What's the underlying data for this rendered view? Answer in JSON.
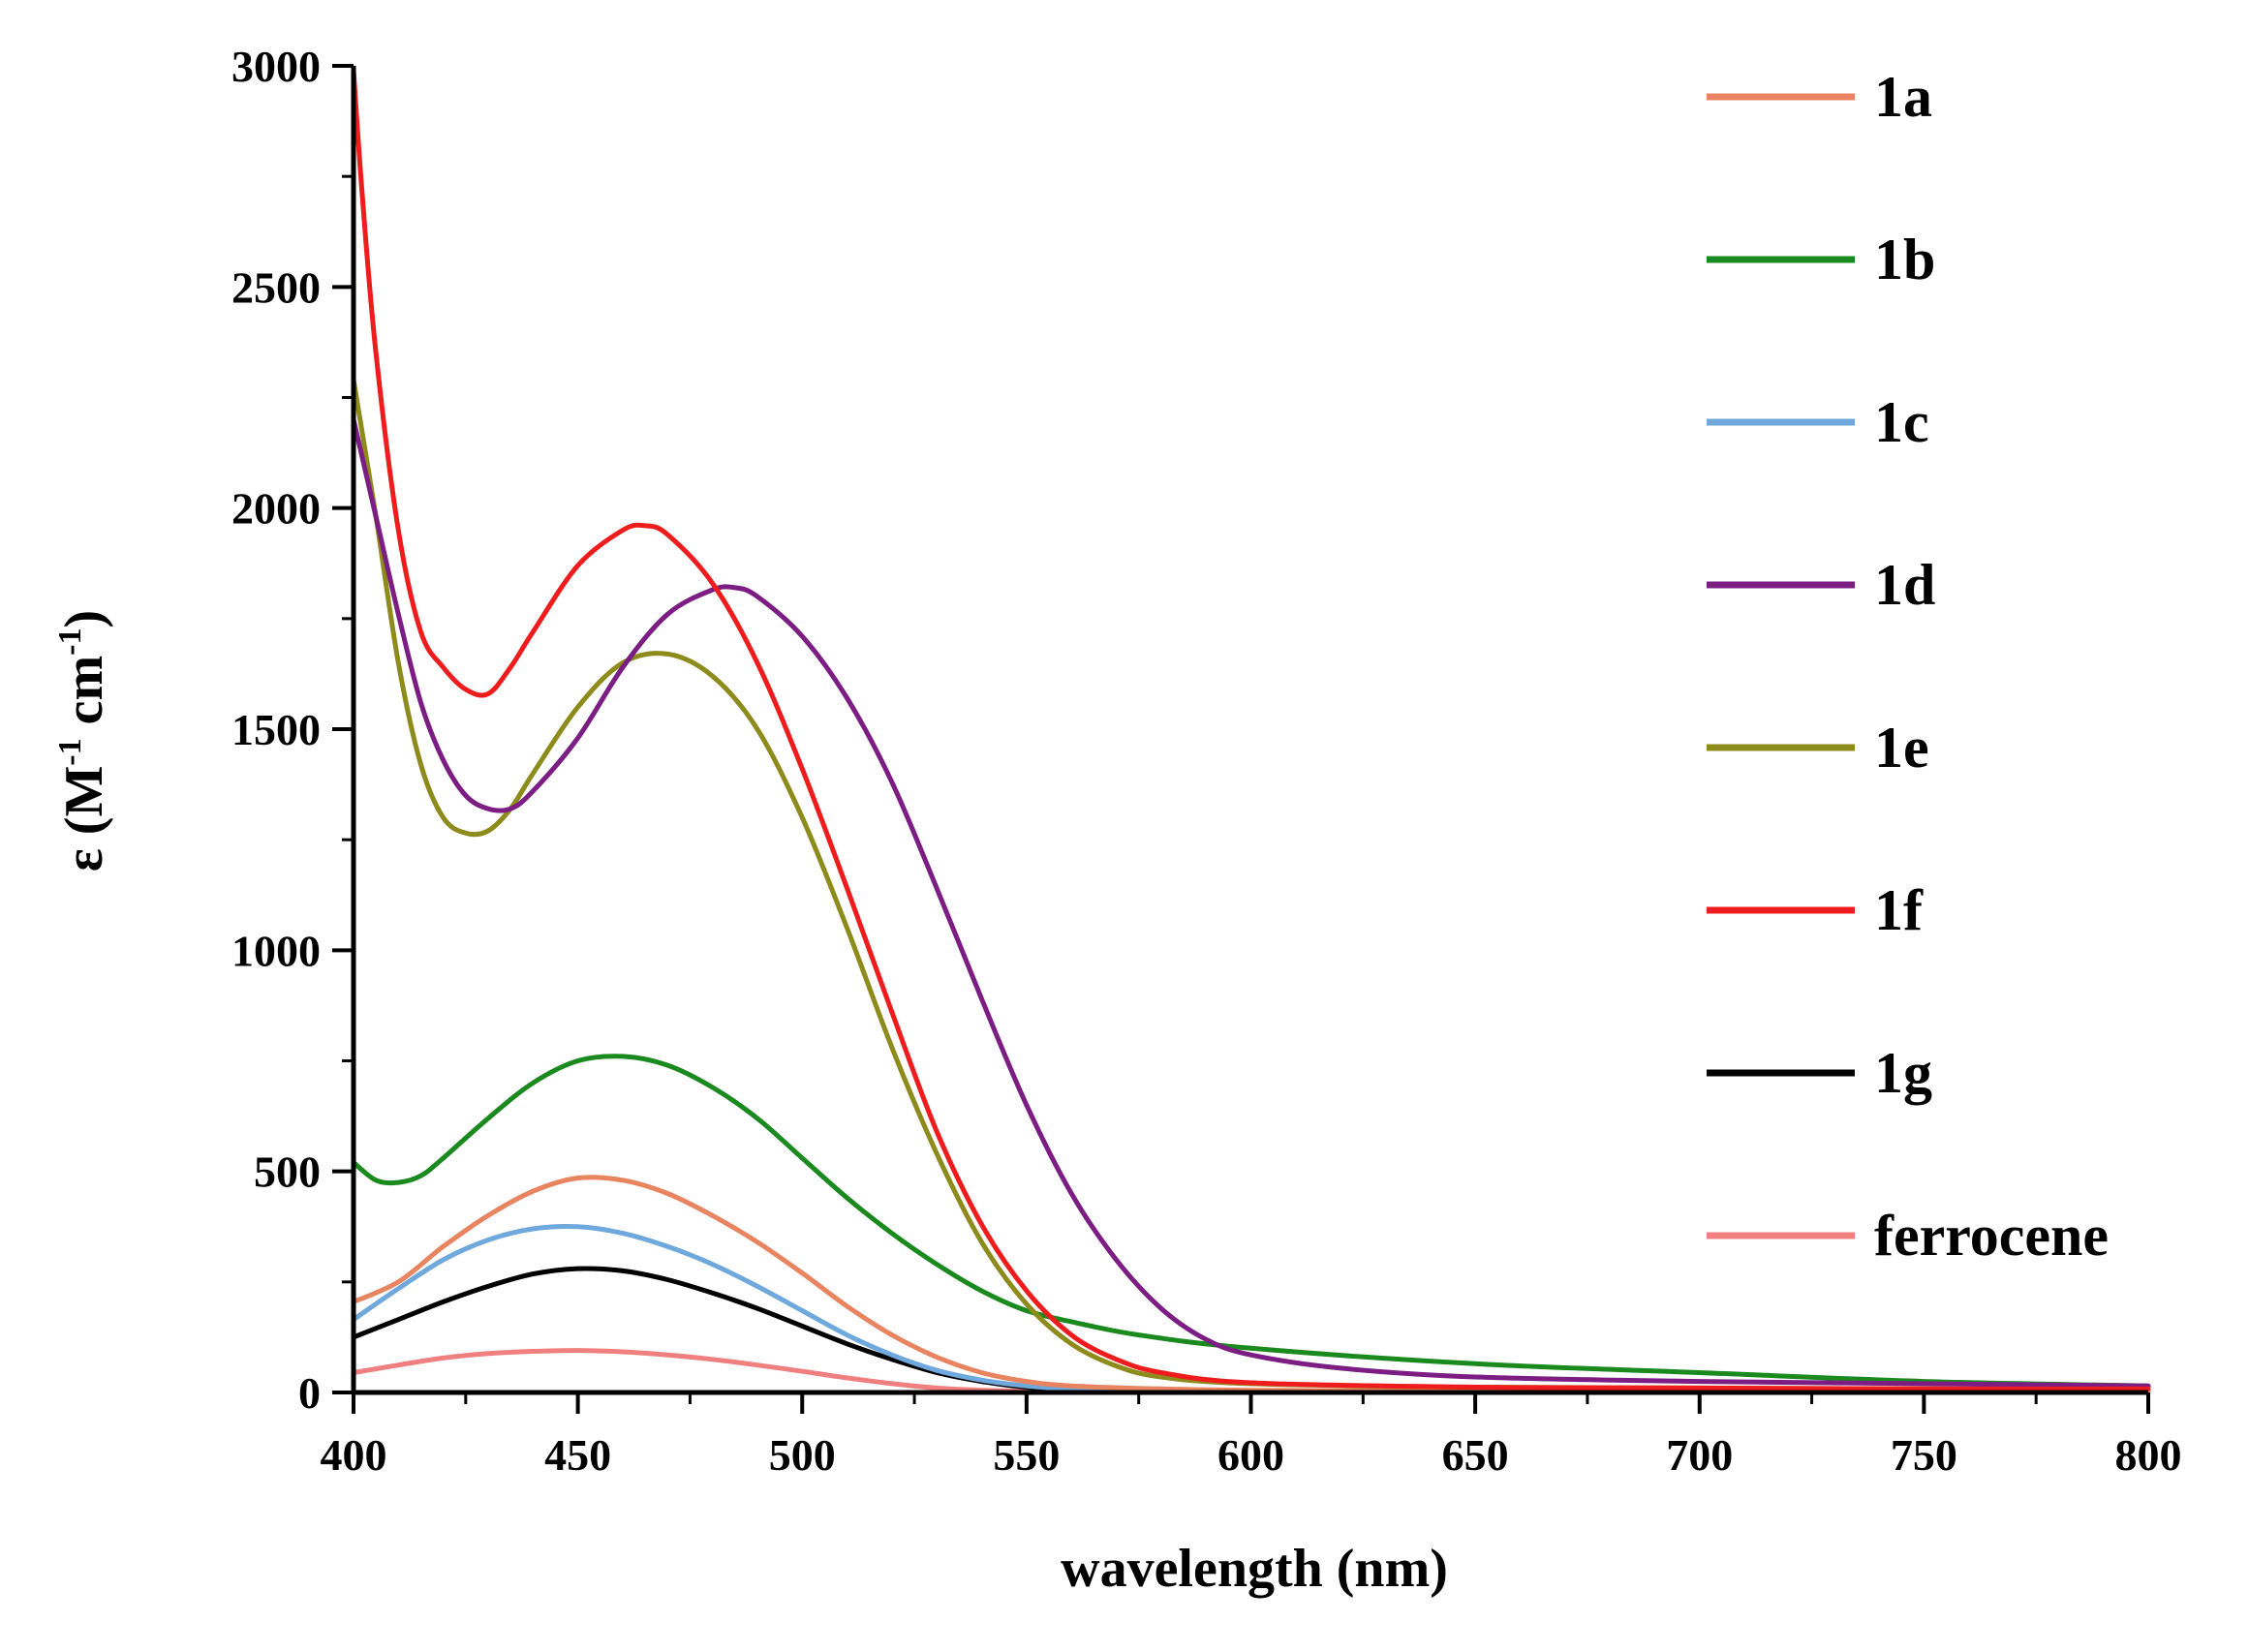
{
  "chart_data": {
    "type": "line",
    "title": "",
    "xlabel": "wavelength (nm)",
    "ylabel": "ε (M",
    "ylabel_sup1": "-1",
    "ylabel_mid": " cm",
    "ylabel_sup2": "-1",
    "ylabel_end": ")",
    "xlim": [
      400,
      800
    ],
    "ylim": [
      0,
      3000
    ],
    "xticks": [
      400,
      450,
      500,
      550,
      600,
      650,
      700,
      750,
      800
    ],
    "yticks": [
      0,
      500,
      1000,
      1500,
      2000,
      2500,
      3000
    ],
    "grid": false,
    "legend_position": "right",
    "series": [
      {
        "name": "1a",
        "color": "#e8845f",
        "x": [
          400,
          410,
          420,
          430,
          440,
          450,
          460,
          470,
          480,
          490,
          500,
          510,
          520,
          530,
          540,
          550,
          560,
          580,
          600,
          650,
          700,
          750,
          800
        ],
        "y": [
          205,
          250,
          330,
          400,
          455,
          485,
          480,
          450,
          400,
          340,
          270,
          195,
          130,
          80,
          45,
          25,
          15,
          8,
          5,
          3,
          2,
          2,
          2
        ]
      },
      {
        "name": "1b",
        "color": "#1a8a1e",
        "x": [
          400,
          405,
          410,
          415,
          420,
          430,
          440,
          450,
          460,
          470,
          480,
          490,
          500,
          510,
          520,
          530,
          540,
          550,
          560,
          575,
          600,
          650,
          700,
          750,
          800
        ],
        "y": [
          520,
          480,
          475,
          490,
          530,
          620,
          700,
          750,
          760,
          740,
          690,
          620,
          530,
          440,
          360,
          290,
          230,
          185,
          160,
          130,
          100,
          65,
          45,
          25,
          15
        ]
      },
      {
        "name": "1c",
        "color": "#6fa8dc",
        "x": [
          400,
          410,
          420,
          430,
          440,
          450,
          460,
          470,
          480,
          490,
          500,
          510,
          520,
          530,
          540,
          550,
          560,
          580,
          600,
          650,
          700,
          750,
          800
        ],
        "y": [
          165,
          235,
          300,
          345,
          370,
          375,
          360,
          330,
          290,
          240,
          185,
          130,
          85,
          50,
          28,
          15,
          8,
          4,
          3,
          2,
          2,
          2,
          2
        ]
      },
      {
        "name": "1d",
        "color": "#7b1d83",
        "x": [
          400,
          405,
          410,
          415,
          420,
          425,
          430,
          435,
          440,
          450,
          460,
          470,
          480,
          485,
          490,
          500,
          510,
          520,
          530,
          540,
          550,
          560,
          570,
          580,
          590,
          600,
          620,
          650,
          700,
          750,
          800
        ],
        "y": [
          2200,
          1980,
          1760,
          1560,
          1430,
          1350,
          1320,
          1320,
          1360,
          1480,
          1640,
          1760,
          1815,
          1820,
          1800,
          1710,
          1570,
          1380,
          1140,
          890,
          650,
          450,
          300,
          190,
          120,
          85,
          55,
          35,
          25,
          20,
          15
        ]
      },
      {
        "name": "1e",
        "color": "#8d8b1c",
        "x": [
          400,
          405,
          410,
          415,
          420,
          425,
          430,
          435,
          440,
          450,
          460,
          470,
          480,
          490,
          500,
          510,
          520,
          530,
          540,
          550,
          560,
          570,
          580,
          600,
          650,
          700,
          750,
          800
        ],
        "y": [
          2290,
          1980,
          1650,
          1420,
          1300,
          1265,
          1270,
          1320,
          1400,
          1550,
          1650,
          1670,
          1620,
          1500,
          1300,
          1050,
          780,
          540,
          340,
          200,
          110,
          60,
          35,
          20,
          12,
          10,
          8,
          8
        ]
      },
      {
        "name": "1f",
        "color": "#ee1c1c",
        "x": [
          400,
          402,
          405,
          410,
          415,
          420,
          425,
          430,
          435,
          440,
          450,
          460,
          465,
          470,
          480,
          490,
          500,
          510,
          520,
          530,
          540,
          550,
          560,
          570,
          580,
          600,
          650,
          700,
          750,
          800
        ],
        "y": [
          2990,
          2700,
          2350,
          1950,
          1720,
          1640,
          1590,
          1580,
          1640,
          1720,
          1870,
          1950,
          1960,
          1940,
          1830,
          1650,
          1410,
          1140,
          860,
          590,
          380,
          230,
          130,
          75,
          45,
          22,
          12,
          10,
          8,
          8
        ]
      },
      {
        "name": "1g",
        "color": "#000000",
        "x": [
          400,
          410,
          420,
          430,
          440,
          450,
          460,
          470,
          480,
          490,
          500,
          510,
          520,
          530,
          540,
          550,
          560,
          580,
          600,
          650,
          700,
          750,
          800
        ],
        "y": [
          125,
          165,
          205,
          240,
          268,
          280,
          275,
          255,
          225,
          190,
          150,
          110,
          75,
          45,
          25,
          12,
          7,
          4,
          3,
          2,
          2,
          2,
          2
        ]
      },
      {
        "name": "ferrocene",
        "color": "#f08080",
        "x": [
          400,
          410,
          420,
          430,
          440,
          450,
          460,
          470,
          480,
          490,
          500,
          510,
          520,
          530,
          540,
          550,
          560,
          580,
          600,
          650,
          700,
          750,
          800
        ],
        "y": [
          45,
          62,
          78,
          88,
          93,
          95,
          92,
          85,
          75,
          62,
          48,
          33,
          20,
          10,
          5,
          3,
          2,
          1,
          1,
          1,
          1,
          1,
          1
        ]
      }
    ]
  }
}
